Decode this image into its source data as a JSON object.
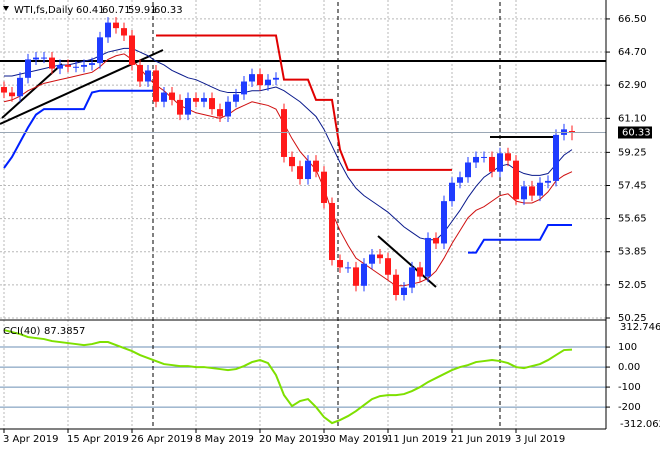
{
  "chart_data": [
    {
      "type": "candlestick",
      "title": "WTI,fs,Daily",
      "categories": [
        "3 Apr 2019",
        null,
        null,
        null,
        null,
        null,
        null,
        null,
        "15 Apr 2019",
        null,
        null,
        null,
        null,
        null,
        null,
        null,
        "26 Apr 2019",
        null,
        null,
        null,
        null,
        null,
        null,
        null,
        "8 May 2019",
        null,
        null,
        null,
        null,
        null,
        null,
        null,
        "20 May 2019",
        null,
        null,
        null,
        null,
        null,
        null,
        null,
        "30 May 2019",
        null,
        null,
        null,
        null,
        null,
        null,
        null,
        "11 Jun 2019",
        null,
        null,
        null,
        null,
        null,
        null,
        null,
        "21 Jun 2019",
        null,
        null,
        null,
        null,
        null,
        null,
        null,
        "3 Jul 2019",
        null,
        null,
        null,
        null,
        null,
        null,
        null
      ],
      "open": [
        62.8,
        62.5,
        62.3,
        63.3,
        64.3,
        64.4,
        64.4,
        63.8,
        64.0,
        63.9,
        63.9,
        64.0,
        64.1,
        65.5,
        66.3,
        66.0,
        65.6,
        64.0,
        63.1,
        63.7,
        62.0,
        62.5,
        62.1,
        61.3,
        62.2,
        62.0,
        62.2,
        61.6,
        61.2,
        62.0,
        62.4,
        63.1,
        63.5,
        62.9,
        63.2,
        61.6,
        59.0,
        58.5,
        57.8,
        58.8,
        58.2,
        56.5,
        53.4,
        53.0,
        53.0,
        52.0,
        53.2,
        53.7,
        53.5,
        52.6,
        51.5,
        51.9,
        53.0,
        52.5,
        54.6,
        54.3,
        56.6,
        57.6,
        57.9,
        58.7,
        59.0,
        59.0,
        58.2,
        59.2,
        58.8,
        56.7,
        57.4,
        56.9,
        57.6,
        57.7,
        60.2,
        60.41
      ],
      "high": [
        63.1,
        62.8,
        63.6,
        64.6,
        64.7,
        64.7,
        64.7,
        64.3,
        64.3,
        64.2,
        64.3,
        64.4,
        65.8,
        66.6,
        66.6,
        66.3,
        65.9,
        64.3,
        64.0,
        64.0,
        62.8,
        62.8,
        62.4,
        62.5,
        62.5,
        62.5,
        62.5,
        61.9,
        62.3,
        62.7,
        63.4,
        63.8,
        63.8,
        63.5,
        63.6,
        61.9,
        59.3,
        58.8,
        59.1,
        59.1,
        58.5,
        56.8,
        53.7,
        53.3,
        53.3,
        53.5,
        54.0,
        54.0,
        53.8,
        52.9,
        52.2,
        53.3,
        53.3,
        54.9,
        54.9,
        56.9,
        57.9,
        58.2,
        59.0,
        59.3,
        59.3,
        59.3,
        59.5,
        59.5,
        59.1,
        57.7,
        57.7,
        57.9,
        58.0,
        60.5,
        60.8,
        60.71
      ],
      "low": [
        62.2,
        62.0,
        62.0,
        63.0,
        64.0,
        64.1,
        63.5,
        63.5,
        63.6,
        63.6,
        63.6,
        63.7,
        63.8,
        65.2,
        65.7,
        65.3,
        63.7,
        62.8,
        62.8,
        61.7,
        61.7,
        61.8,
        61.0,
        61.0,
        61.7,
        61.7,
        61.3,
        60.9,
        60.9,
        61.7,
        62.1,
        62.8,
        62.6,
        62.6,
        62.9,
        58.7,
        58.2,
        57.5,
        57.5,
        57.9,
        56.2,
        53.1,
        52.7,
        52.7,
        51.7,
        51.7,
        52.9,
        53.2,
        52.3,
        51.2,
        51.2,
        51.6,
        52.2,
        52.2,
        54.0,
        54.0,
        56.3,
        57.3,
        57.6,
        58.4,
        58.7,
        57.9,
        57.9,
        58.5,
        56.4,
        56.4,
        56.6,
        56.6,
        57.3,
        57.4,
        59.9,
        59.91
      ],
      "close": [
        62.5,
        62.3,
        63.3,
        64.3,
        64.4,
        64.4,
        63.8,
        64.0,
        63.9,
        63.9,
        64.0,
        64.1,
        65.5,
        66.3,
        66.0,
        65.6,
        64.0,
        63.1,
        63.7,
        62.0,
        62.5,
        62.1,
        61.3,
        62.2,
        62.0,
        62.2,
        61.6,
        61.2,
        62.0,
        62.4,
        63.1,
        63.5,
        62.9,
        63.2,
        63.3,
        59.0,
        58.5,
        57.8,
        58.8,
        58.2,
        56.5,
        53.4,
        53.0,
        53.0,
        52.0,
        53.2,
        53.7,
        53.5,
        52.6,
        51.5,
        51.9,
        53.0,
        52.5,
        54.6,
        54.3,
        56.6,
        57.6,
        57.9,
        58.7,
        59.0,
        59.0,
        58.2,
        59.2,
        58.8,
        56.7,
        57.4,
        56.9,
        57.6,
        57.7,
        60.2,
        60.5,
        60.33
      ],
      "up_color": "#1f3cff",
      "down_color": "#ff1a1a",
      "series": [
        {
          "color": "#0a1a8c",
          "width": 1,
          "values": [
            63.4,
            63.4,
            63.5,
            63.6,
            63.7,
            63.8,
            63.9,
            64.0,
            64.0,
            64.1,
            64.2,
            64.3,
            64.5,
            64.7,
            64.8,
            64.9,
            64.9,
            64.7,
            64.5,
            64.2,
            64.0,
            63.7,
            63.5,
            63.3,
            63.2,
            63.0,
            62.8,
            62.6,
            62.5,
            62.5,
            62.5,
            62.6,
            62.6,
            62.7,
            62.8,
            62.6,
            62.3,
            62.0,
            61.6,
            61.2,
            60.5,
            59.6,
            58.7,
            57.9,
            57.3,
            56.9,
            56.6,
            56.3,
            56.0,
            55.6,
            55.2,
            54.9,
            54.6,
            54.5,
            54.5,
            54.9,
            55.5,
            56.1,
            56.8,
            57.4,
            57.9,
            58.2,
            58.5,
            58.6,
            58.3,
            58.1,
            58.0,
            58.0,
            58.1,
            58.6,
            59.1,
            59.4
          ]
        },
        {
          "color": "#d01010",
          "width": 1,
          "values": [
            62.0,
            62.1,
            62.3,
            62.6,
            62.8,
            63.0,
            63.1,
            63.2,
            63.3,
            63.4,
            63.5,
            63.6,
            63.9,
            64.3,
            64.5,
            64.6,
            64.3,
            63.8,
            63.3,
            62.9,
            62.6,
            62.2,
            61.8,
            61.6,
            61.4,
            61.3,
            61.2,
            61.1,
            61.3,
            61.6,
            61.8,
            62.0,
            61.9,
            61.8,
            61.6,
            60.8,
            60.0,
            59.3,
            58.8,
            58.3,
            57.3,
            56.0,
            55.0,
            54.2,
            53.5,
            53.2,
            52.9,
            52.6,
            52.3,
            52.0,
            52.0,
            52.1,
            52.2,
            52.4,
            52.8,
            53.5,
            54.3,
            55.0,
            55.7,
            56.1,
            56.3,
            56.6,
            56.9,
            57.0,
            56.6,
            56.5,
            56.5,
            56.7,
            57.1,
            57.7,
            58.0,
            58.2
          ]
        },
        {
          "color": "#e00000",
          "width": 2,
          "values": [
            null,
            null,
            null,
            null,
            null,
            null,
            null,
            null,
            null,
            null,
            null,
            null,
            null,
            null,
            null,
            null,
            null,
            null,
            null,
            65.6,
            65.6,
            65.6,
            65.6,
            65.6,
            65.6,
            65.6,
            65.6,
            65.6,
            65.6,
            65.6,
            65.6,
            65.6,
            65.6,
            65.6,
            65.6,
            63.2,
            63.2,
            63.2,
            63.2,
            62.1,
            62.1,
            62.1,
            59.4,
            58.3,
            58.3,
            58.3,
            58.3,
            58.3,
            58.3,
            58.3,
            58.3,
            58.3,
            58.3,
            58.3,
            58.3,
            58.3,
            58.3,
            null,
            null,
            null,
            null,
            null,
            null,
            null,
            null,
            null,
            null,
            null,
            null,
            null,
            null,
            null
          ]
        },
        {
          "color": "#0020ff",
          "width": 2,
          "values": [
            58.4,
            59.0,
            59.8,
            60.6,
            61.3,
            61.6,
            61.6,
            61.6,
            61.6,
            61.6,
            61.6,
            62.5,
            62.6,
            62.6,
            62.6,
            62.6,
            62.6,
            62.6,
            62.6,
            62.6,
            null,
            null,
            null,
            null,
            null,
            null,
            null,
            null,
            null,
            null,
            null,
            null,
            null,
            null,
            null,
            null,
            null,
            null,
            null,
            null,
            null,
            null,
            null,
            null,
            null,
            null,
            null,
            null,
            null,
            null,
            null,
            null,
            null,
            null,
            null,
            null,
            null,
            null,
            53.8,
            53.8,
            54.5,
            54.5,
            54.5,
            54.5,
            54.5,
            54.5,
            54.5,
            54.5,
            55.3,
            55.3,
            55.3,
            55.3
          ]
        }
      ],
      "ylim": [
        50.25,
        67.42
      ],
      "yticks": [
        {
          "value": 66.5,
          "label": "66.50"
        },
        {
          "value": 64.7,
          "label": "64.70"
        },
        {
          "value": 62.9,
          "label": "62.90"
        },
        {
          "value": 61.1,
          "label": "61.10"
        },
        59.25,
        57.45,
        55.65,
        53.85,
        52.05,
        50.25
      ],
      "grid": true
    },
    {
      "type": "line",
      "title": "CCI(40)",
      "color": "#7ee000",
      "values": [
        185,
        175,
        165,
        150,
        145,
        140,
        130,
        125,
        120,
        115,
        110,
        115,
        125,
        125,
        110,
        95,
        80,
        60,
        45,
        30,
        15,
        10,
        5,
        5,
        0,
        0,
        -5,
        -10,
        -15,
        -10,
        5,
        25,
        35,
        20,
        -40,
        -140,
        -195,
        -170,
        -160,
        -200,
        -250,
        -280,
        -265,
        -245,
        -220,
        -190,
        -160,
        -145,
        -140,
        -140,
        -135,
        -120,
        -100,
        -75,
        -55,
        -35,
        -15,
        0,
        10,
        25,
        30,
        35,
        30,
        20,
        0,
        -5,
        5,
        15,
        35,
        60,
        85,
        87.3857
      ],
      "ylim": [
        -312.062,
        312.746
      ],
      "yticks": [
        100,
        {
          "value": 0,
          "label": "0.00"
        },
        -100,
        -200
      ]
    }
  ]
}
